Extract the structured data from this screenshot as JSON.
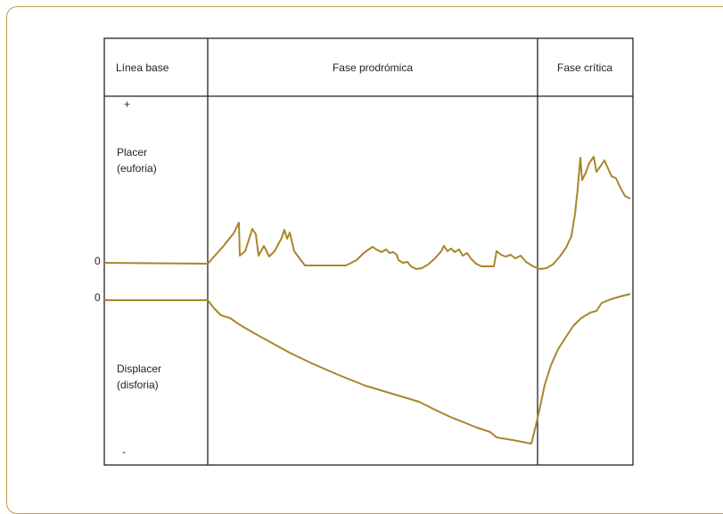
{
  "colors": {
    "accent": "#a8862a",
    "frame_border": "#b8a24a",
    "grid": "#222222"
  },
  "phases": {
    "baseline": "Línea base",
    "prodromal": "Fase prodrómica",
    "critical": "Fase crítica"
  },
  "axis": {
    "plus_sign": "+",
    "minus_sign": "-",
    "zero_upper": "0",
    "zero_lower": "0"
  },
  "labels": {
    "pleasure_line1": "Placer",
    "pleasure_line2": "(euforia)",
    "displeasure_line1": "Displacer",
    "displeasure_line2": "(disforia)"
  }
}
